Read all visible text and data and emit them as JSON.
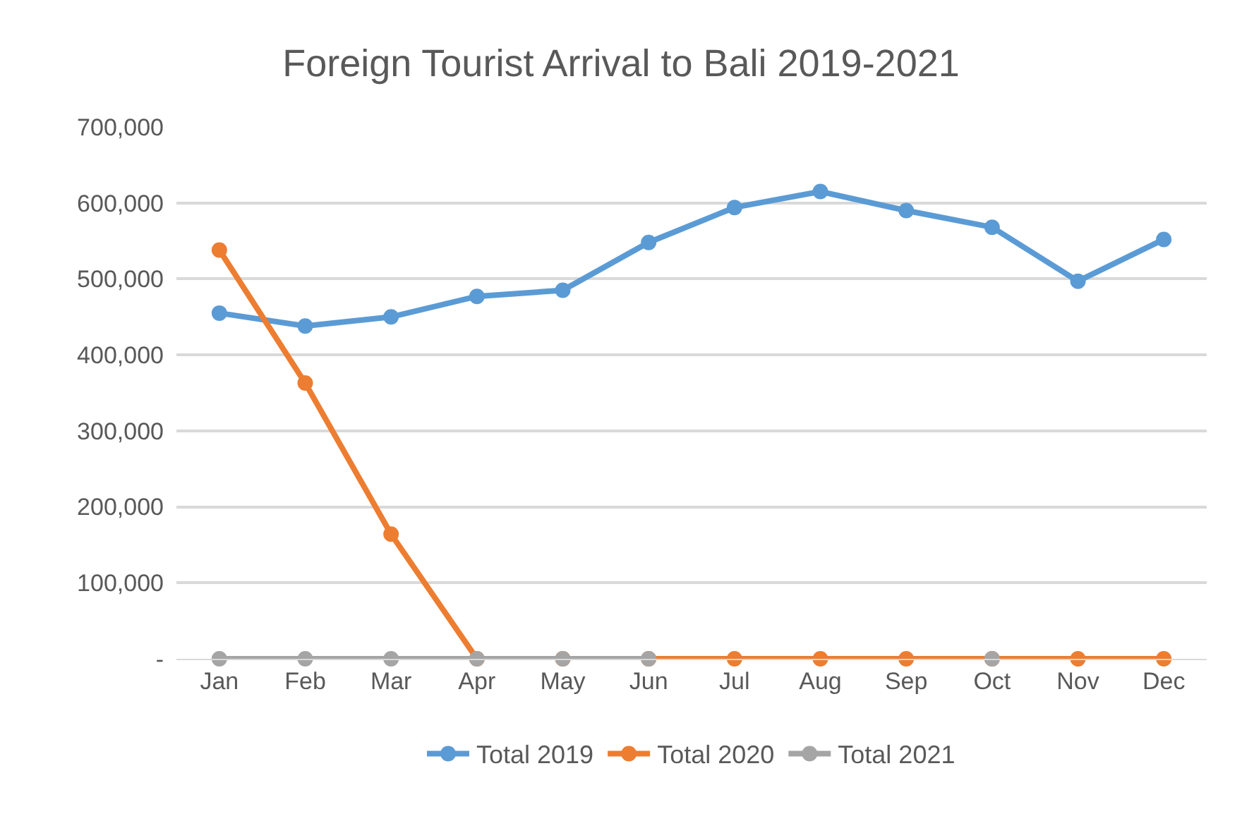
{
  "chart_data": {
    "type": "line",
    "title": "Foreign Tourist Arrival to Bali 2019-2021",
    "categories": [
      "Jan",
      "Feb",
      "Mar",
      "Apr",
      "May",
      "Jun",
      "Jul",
      "Aug",
      "Sep",
      "Oct",
      "Nov",
      "Dec"
    ],
    "series": [
      {
        "name": "Total 2019",
        "color": "#5b9bd5",
        "values": [
          455000,
          438000,
          450000,
          477000,
          485000,
          548000,
          594000,
          615000,
          590000,
          568000,
          497000,
          552000
        ]
      },
      {
        "name": "Total 2020",
        "color": "#ed7d31",
        "values": [
          538000,
          363000,
          164000,
          0,
          0,
          0,
          0,
          0,
          0,
          0,
          0,
          0
        ]
      },
      {
        "name": "Total 2021",
        "color": "#a5a5a5",
        "values": [
          0,
          0,
          0,
          0,
          0,
          0,
          null,
          null,
          null,
          0,
          null,
          null
        ]
      }
    ],
    "ylim": [
      0,
      700000
    ],
    "yticks": [
      {
        "value": 0,
        "label": "-"
      },
      {
        "value": 100000,
        "label": "100,000"
      },
      {
        "value": 200000,
        "label": "200,000"
      },
      {
        "value": 300000,
        "label": "300,000"
      },
      {
        "value": 400000,
        "label": "400,000"
      },
      {
        "value": 500000,
        "label": "500,000"
      },
      {
        "value": 600000,
        "label": "600,000"
      },
      {
        "value": 700000,
        "label": "700,000"
      }
    ],
    "grid": "y",
    "legend": "bottom",
    "marker": "circle",
    "line_style": "solid"
  }
}
